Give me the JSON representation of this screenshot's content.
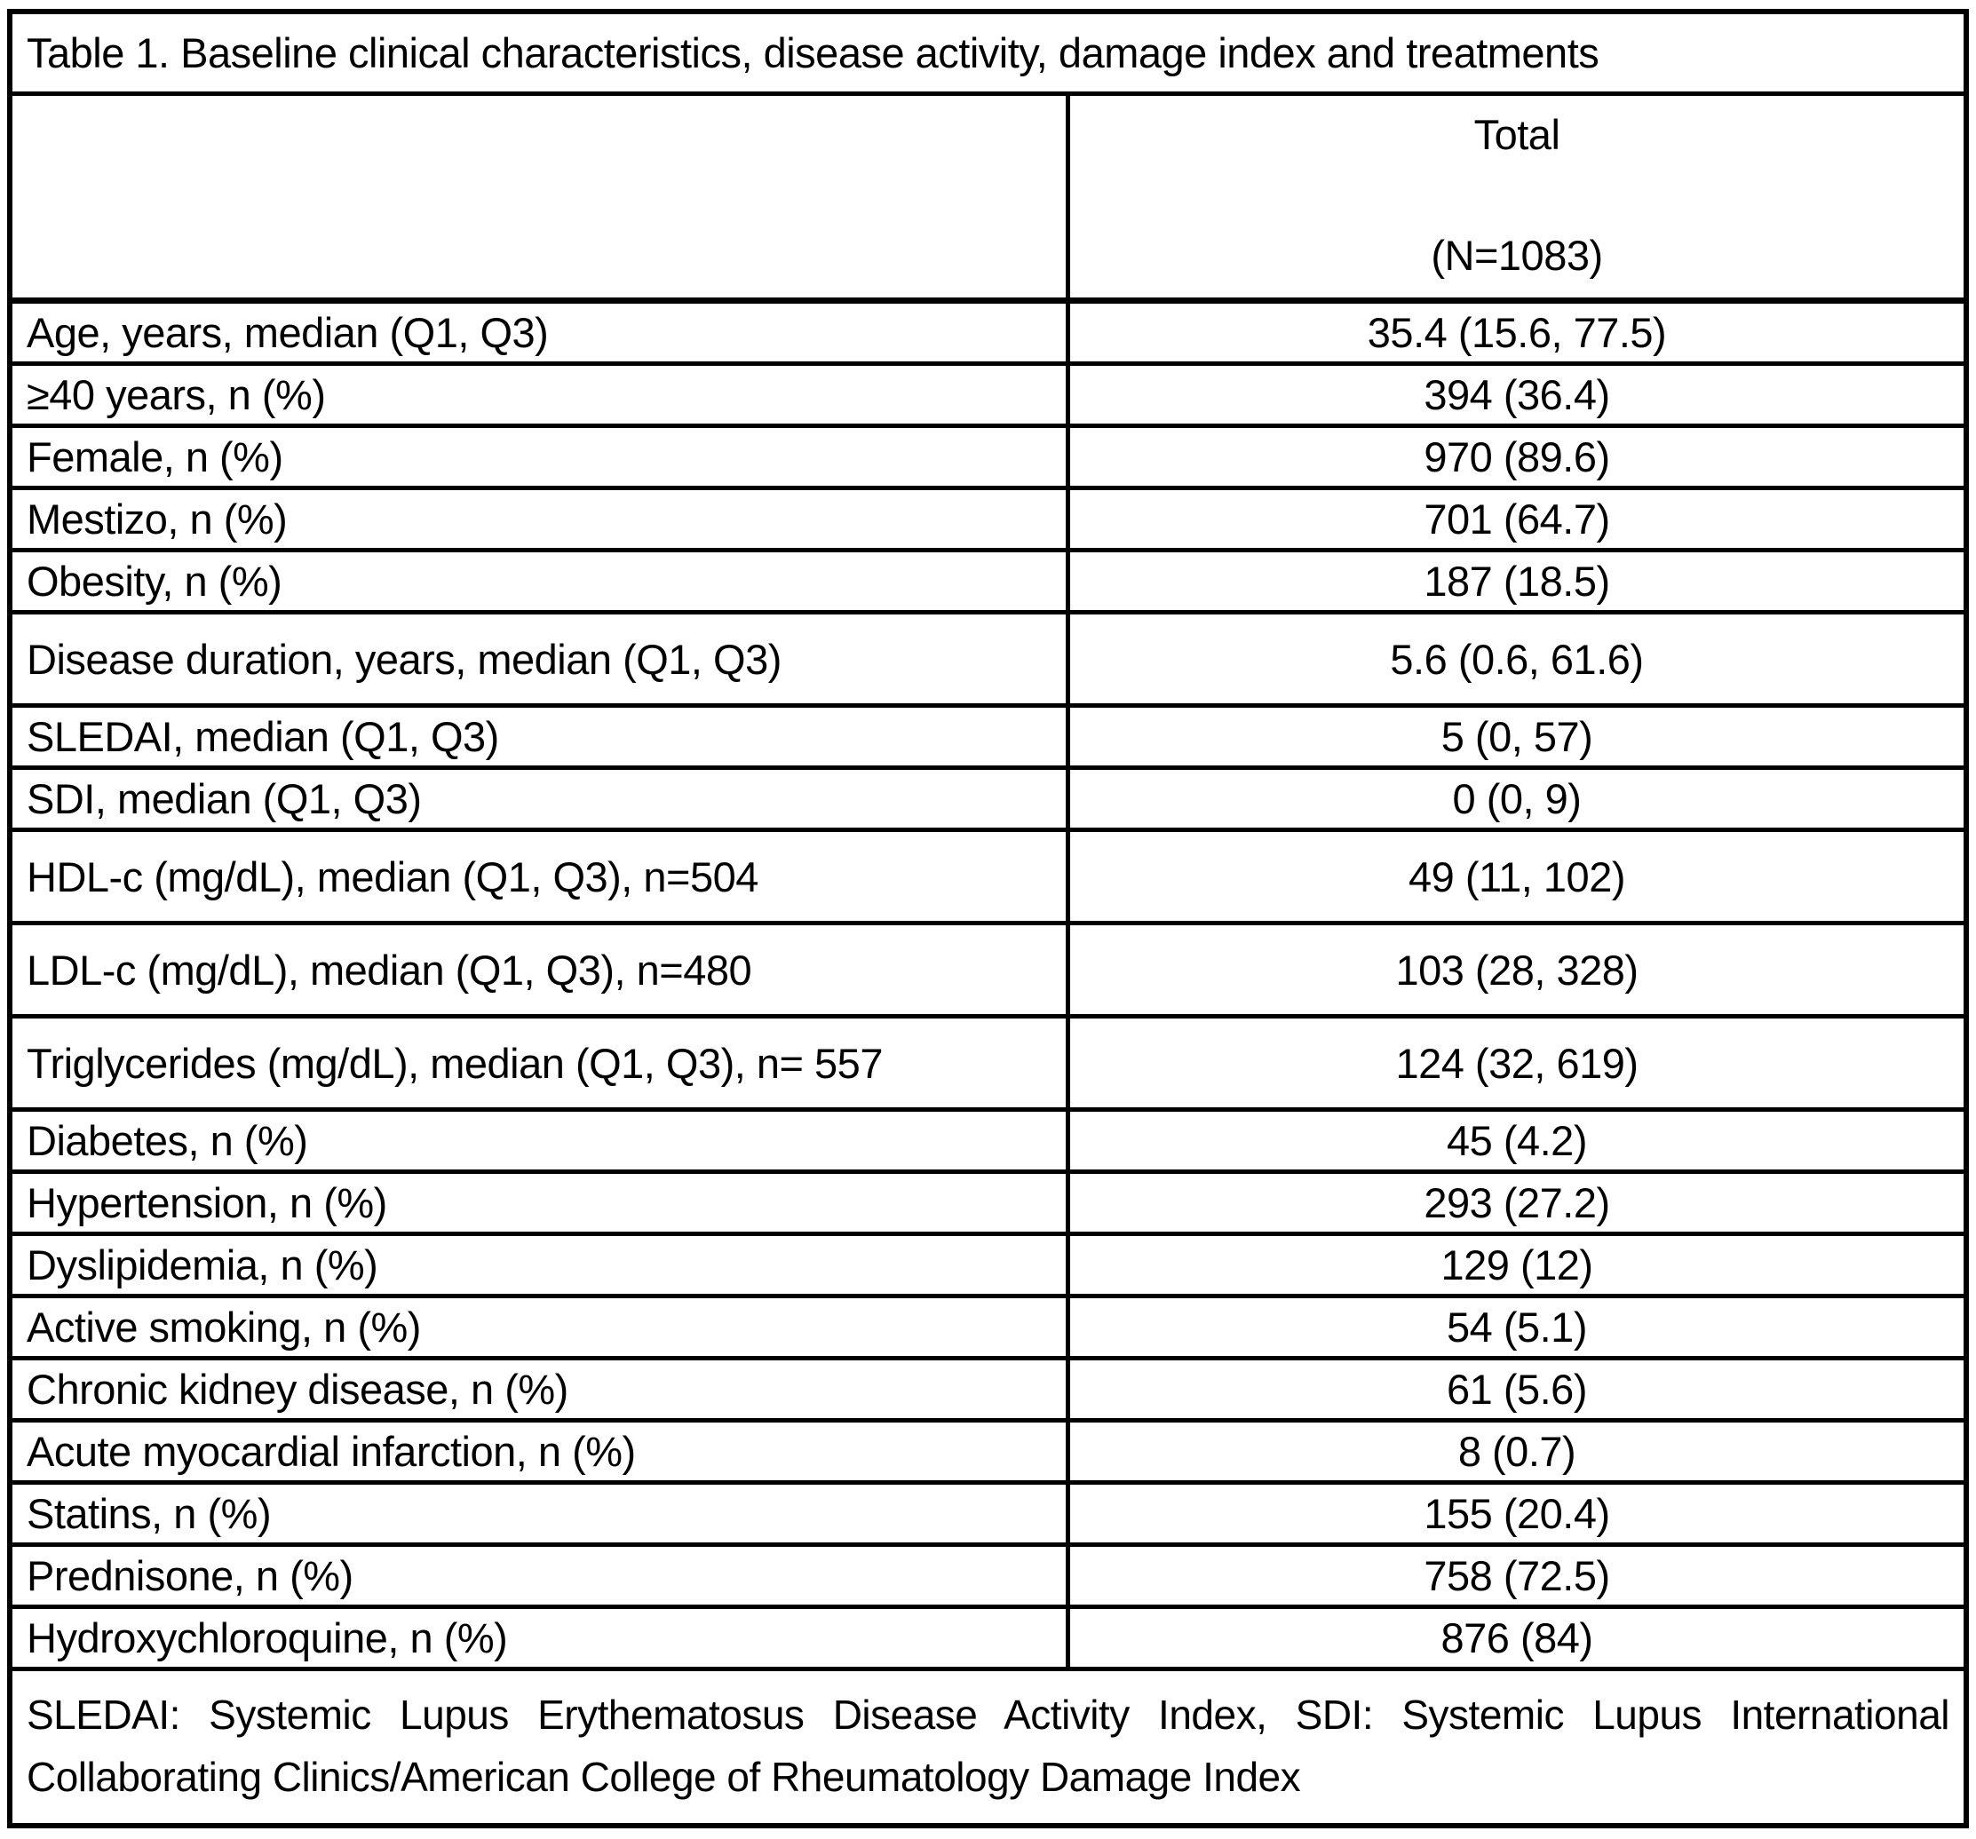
{
  "table": {
    "title": "Table 1. Baseline clinical characteristics, disease activity, damage index and treatments",
    "header": {
      "total": "Total",
      "n": "(N=1083)"
    },
    "rows": [
      {
        "label": "Age, years, median (Q1, Q3)",
        "value": "35.4 (15.6, 77.5)"
      },
      {
        "label": "≥40 years, n (%)",
        "value": "394 (36.4)"
      },
      {
        "label": "Female, n (%)",
        "value": "970 (89.6)"
      },
      {
        "label": "Mestizo, n (%)",
        "value": "701 (64.7)"
      },
      {
        "label": "Obesity, n (%)",
        "value": "187 (18.5)"
      },
      {
        "label": "Disease duration, years, median (Q1, Q3)",
        "value": "5.6 (0.6, 61.6)"
      },
      {
        "label": "SLEDAI, median (Q1, Q3)",
        "value": "5 (0, 57)"
      },
      {
        "label": "SDI, median (Q1, Q3)",
        "value": "0 (0, 9)"
      },
      {
        "label": "HDL-c (mg/dL), median (Q1, Q3), n=504",
        "value": "49 (11, 102)"
      },
      {
        "label": "LDL-c (mg/dL), median (Q1, Q3), n=480",
        "value": "103 (28, 328)"
      },
      {
        "label": "Triglycerides (mg/dL), median (Q1, Q3), n= 557",
        "value": "124 (32, 619)"
      },
      {
        "label": "Diabetes, n (%)",
        "value": "45 (4.2)"
      },
      {
        "label": "Hypertension, n (%)",
        "value": "293 (27.2)"
      },
      {
        "label": "Dyslipidemia, n (%)",
        "value": "129 (12)"
      },
      {
        "label": "Active smoking, n (%)",
        "value": "54 (5.1)"
      },
      {
        "label": "Chronic kidney disease, n (%)",
        "value": "61 (5.6)"
      },
      {
        "label": "Acute myocardial infarction, n (%)",
        "value": "8 (0.7)"
      },
      {
        "label": "Statins, n (%)",
        "value": "155 (20.4)"
      },
      {
        "label": "Prednisone, n (%)",
        "value": "758 (72.5)"
      },
      {
        "label": "Hydroxychloroquine, n (%)",
        "value": "876 (84)"
      }
    ],
    "footnote": "SLEDAI: Systemic Lupus Erythematosus Disease Activity Index, SDI: Systemic Lupus International Collaborating Clinics/American College of Rheumatology Damage Index",
    "colors": {
      "text": "#000000",
      "border": "#000000",
      "background": "#ffffff"
    }
  }
}
